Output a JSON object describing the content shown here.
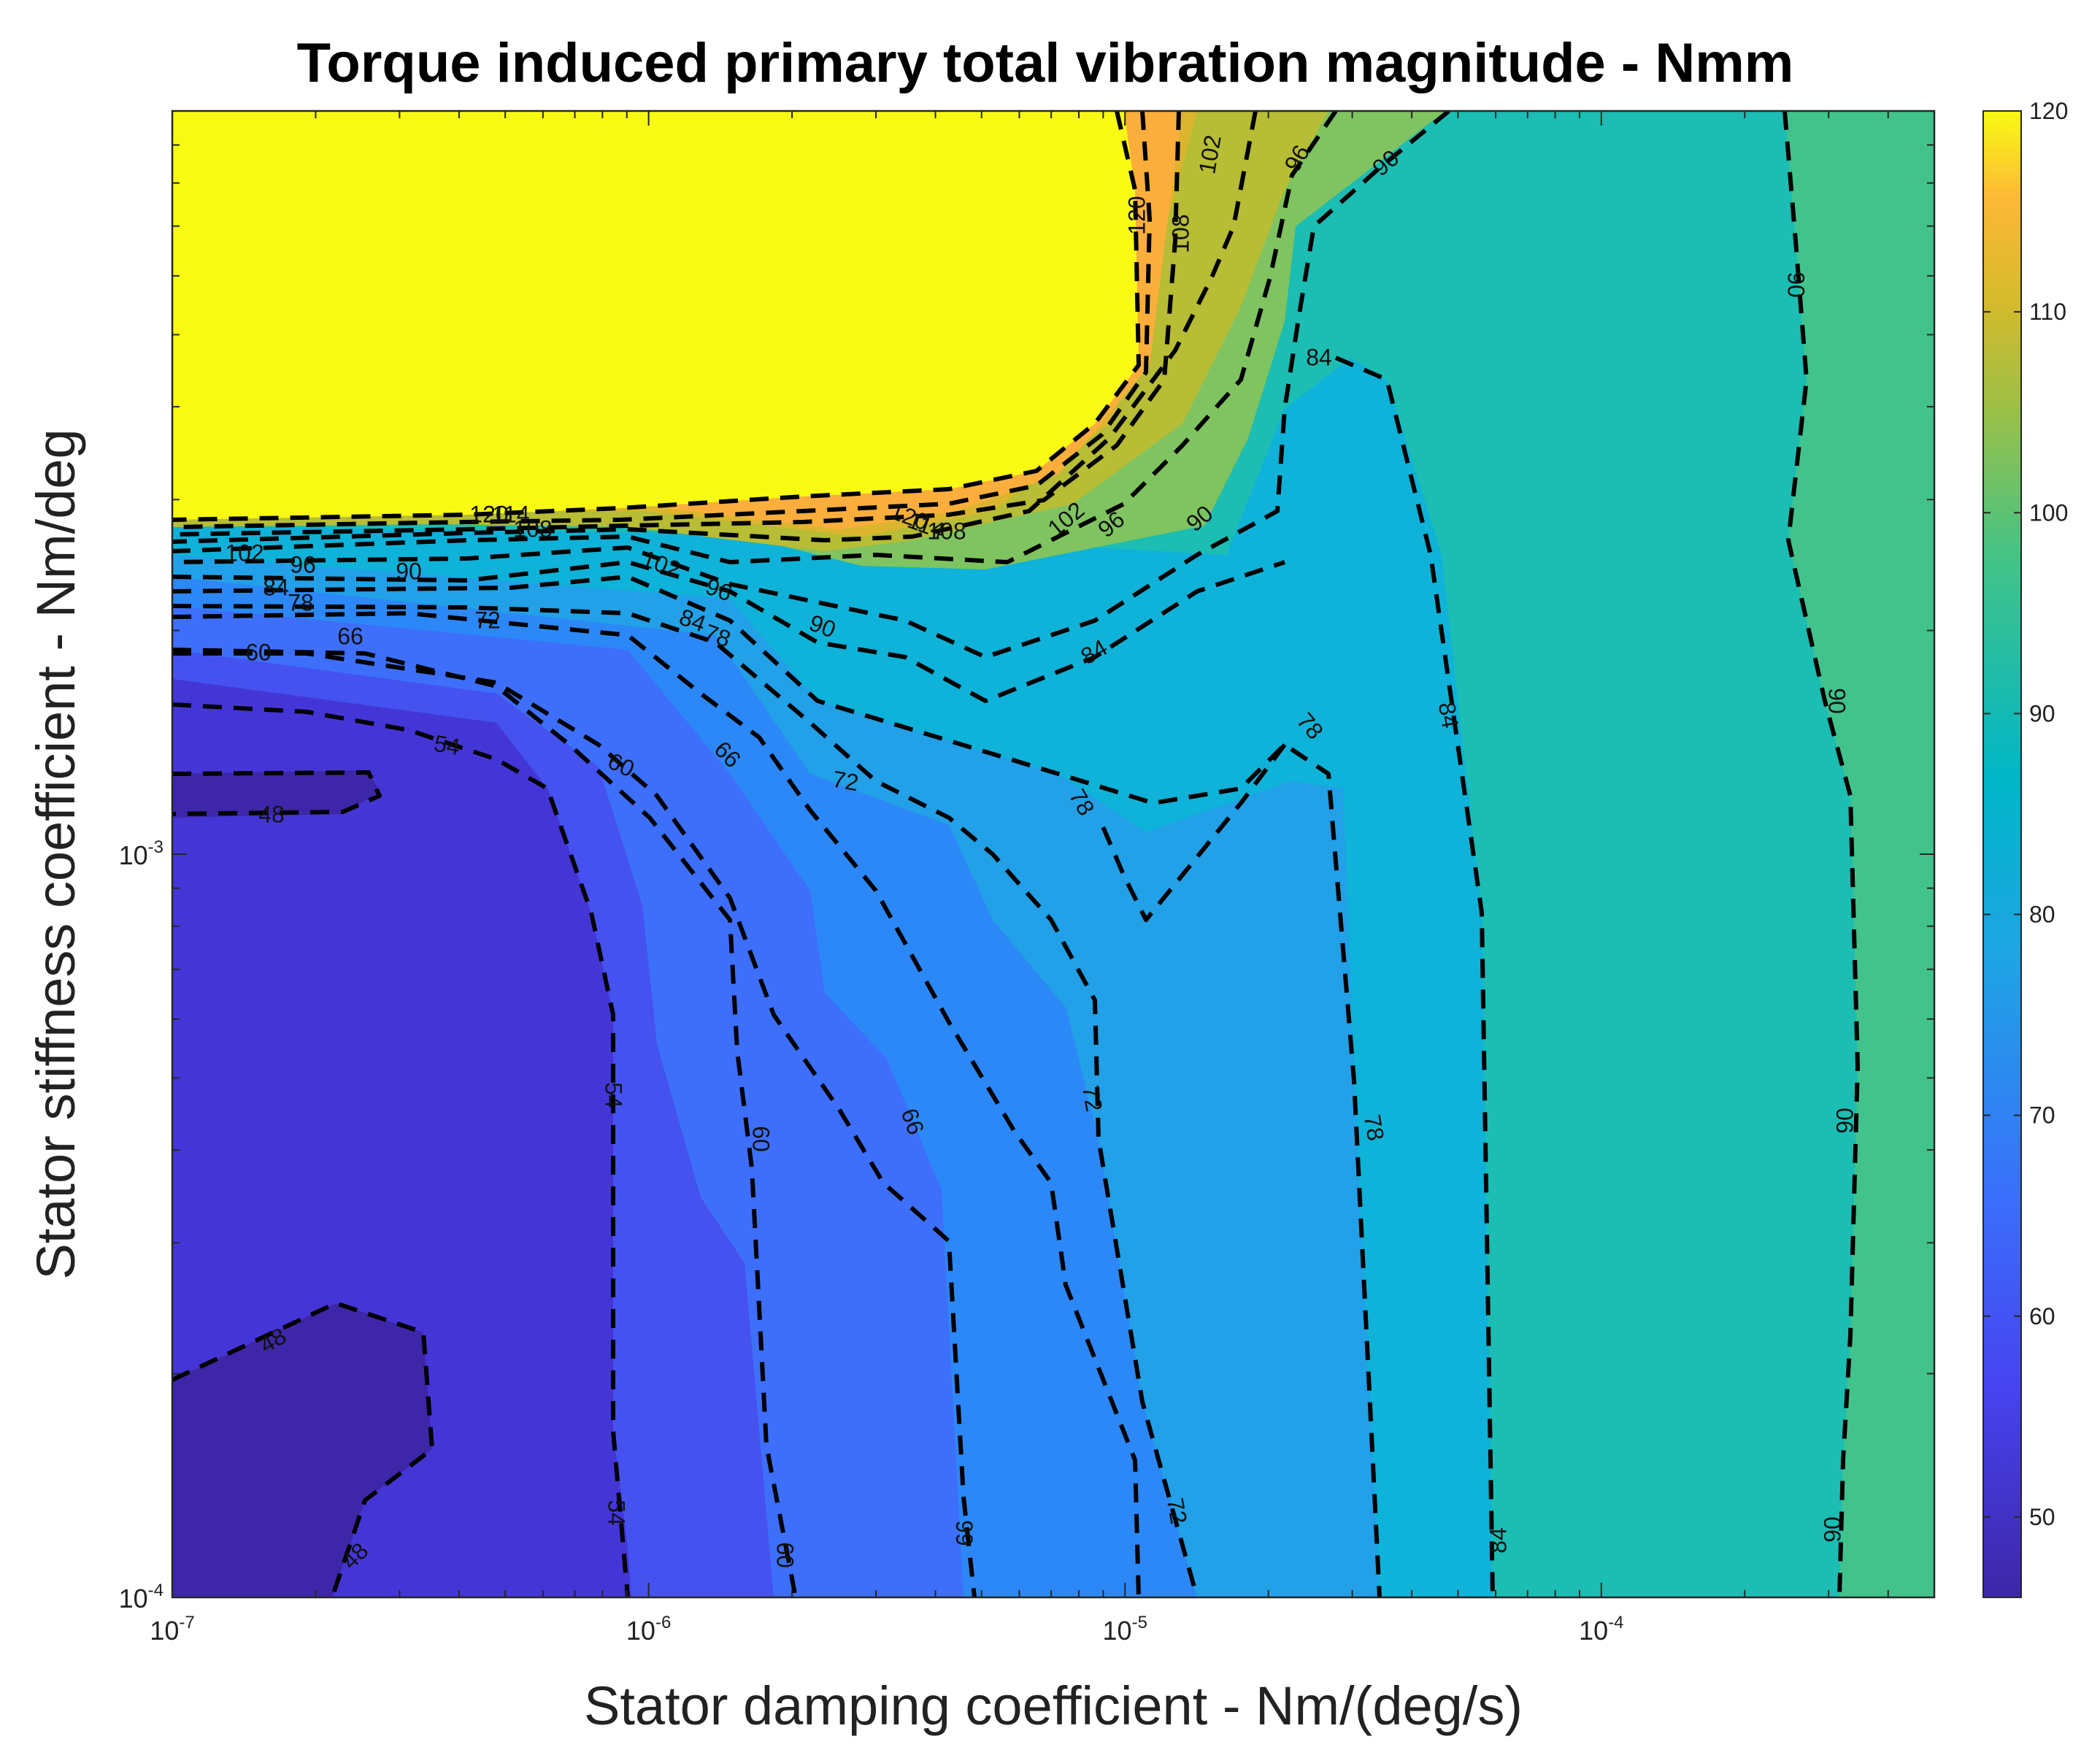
{
  "chart_data": {
    "type": "contour",
    "title": "Torque induced primary total vibration magnitude - Nmm",
    "xlabel": "Stator damping coefficient - Nm/(deg/s)",
    "ylabel": "Stator stiffness coefficient - Nm/deg",
    "x_scale": "log",
    "y_scale": "log",
    "xlim": [
      1e-07,
      0.0005
    ],
    "ylim": [
      0.0001,
      0.01
    ],
    "x_tick_labels": [
      {
        "base": "10",
        "exp": "-7"
      },
      {
        "base": "10",
        "exp": "-6"
      },
      {
        "base": "10",
        "exp": "-5"
      },
      {
        "base": "10",
        "exp": "-4"
      }
    ],
    "y_tick_labels": [
      {
        "base": "10",
        "exp": "-4"
      },
      {
        "base": "10",
        "exp": "-3"
      }
    ],
    "colorbar": {
      "range": [
        46,
        120
      ],
      "ticks": [
        "50",
        "60",
        "70",
        "80",
        "90",
        "100",
        "110",
        "120"
      ],
      "colormap": "parula"
    },
    "contour_levels": [
      48,
      54,
      60,
      66,
      72,
      78,
      84,
      90,
      96,
      102,
      108,
      114,
      120
    ],
    "contour_labels": [
      "48",
      "48",
      "48",
      "54",
      "54",
      "54",
      "60",
      "60",
      "60",
      "60",
      "66",
      "66",
      "66",
      "66",
      "72",
      "72",
      "72",
      "72",
      "78",
      "78",
      "78",
      "78",
      "78",
      "84",
      "84",
      "84",
      "84",
      "84",
      "84",
      "90",
      "90",
      "90",
      "90",
      "90",
      "90",
      "90",
      "90",
      "96",
      "96",
      "96",
      "96",
      "102",
      "102",
      "102",
      "102",
      "108",
      "108",
      "108",
      "114",
      "114",
      "120",
      "120",
      "120"
    ],
    "line_style": "dashed-black"
  }
}
